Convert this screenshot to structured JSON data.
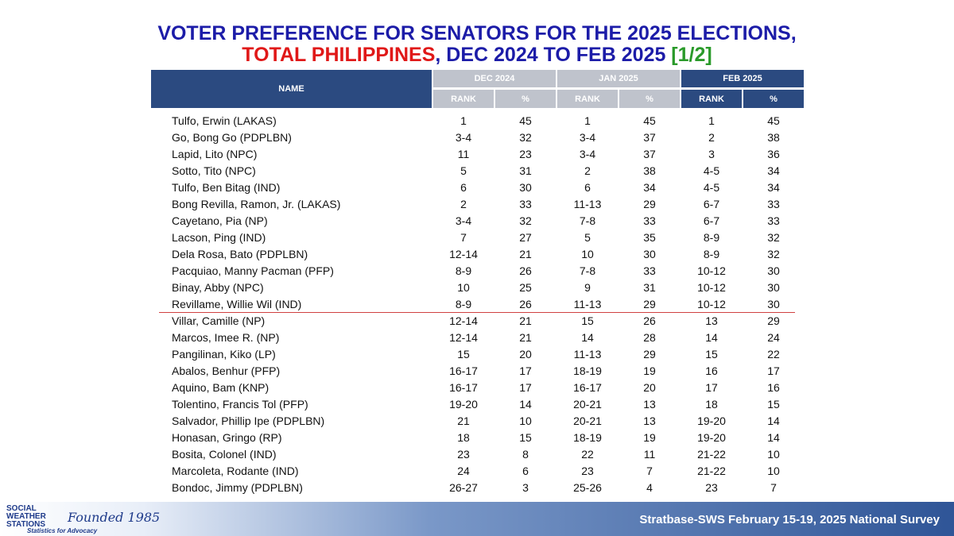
{
  "title": {
    "line1": "VOTER PREFERENCE FOR SENATORS FOR THE 2025 ELECTIONS,",
    "line2_red": "TOTAL PHILIPPINES",
    "line2_blue": ", DEC 2024 TO FEB 2025 ",
    "line2_green": "[1/2]"
  },
  "table": {
    "name_header": "NAME",
    "periods": [
      {
        "label": "DEC 2024",
        "columns": [
          "RANK",
          "%"
        ]
      },
      {
        "label": "JAN 2025",
        "columns": [
          "RANK",
          "%"
        ]
      },
      {
        "label": "FEB 2025",
        "columns": [
          "RANK",
          "%"
        ]
      }
    ],
    "rows": [
      [
        "Tulfo, Erwin (LAKAS)",
        "1",
        "45",
        "1",
        "45",
        "1",
        "45"
      ],
      [
        "Go, Bong Go (PDPLBN)",
        "3-4",
        "32",
        "3-4",
        "37",
        "2",
        "38"
      ],
      [
        "Lapid, Lito (NPC)",
        "11",
        "23",
        "3-4",
        "37",
        "3",
        "36"
      ],
      [
        "Sotto, Tito (NPC)",
        "5",
        "31",
        "2",
        "38",
        "4-5",
        "34"
      ],
      [
        "Tulfo, Ben Bitag (IND)",
        "6",
        "30",
        "6",
        "34",
        "4-5",
        "34"
      ],
      [
        "Bong Revilla, Ramon, Jr. (LAKAS)",
        "2",
        "33",
        "11-13",
        "29",
        "6-7",
        "33"
      ],
      [
        "Cayetano, Pia (NP)",
        "3-4",
        "32",
        "7-8",
        "33",
        "6-7",
        "33"
      ],
      [
        "Lacson, Ping (IND)",
        "7",
        "27",
        "5",
        "35",
        "8-9",
        "32"
      ],
      [
        "Dela Rosa, Bato (PDPLBN)",
        "12-14",
        "21",
        "10",
        "30",
        "8-9",
        "32"
      ],
      [
        "Pacquiao, Manny Pacman (PFP)",
        "8-9",
        "26",
        "7-8",
        "33",
        "10-12",
        "30"
      ],
      [
        "Binay, Abby (NPC)",
        "10",
        "25",
        "9",
        "31",
        "10-12",
        "30"
      ],
      [
        "Revillame, Willie Wil (IND)",
        "8-9",
        "26",
        "11-13",
        "29",
        "10-12",
        "30"
      ],
      [
        "Villar, Camille (NP)",
        "12-14",
        "21",
        "15",
        "26",
        "13",
        "29"
      ],
      [
        "Marcos, Imee R. (NP)",
        "12-14",
        "21",
        "14",
        "28",
        "14",
        "24"
      ],
      [
        "Pangilinan, Kiko (LP)",
        "15",
        "20",
        "11-13",
        "29",
        "15",
        "22"
      ],
      [
        "Abalos, Benhur (PFP)",
        "16-17",
        "17",
        "18-19",
        "19",
        "16",
        "17"
      ],
      [
        "Aquino, Bam (KNP)",
        "16-17",
        "17",
        "16-17",
        "20",
        "17",
        "16"
      ],
      [
        "Tolentino, Francis Tol (PFP)",
        "19-20",
        "14",
        "20-21",
        "13",
        "18",
        "15"
      ],
      [
        "Salvador, Phillip Ipe (PDPLBN)",
        "21",
        "10",
        "20-21",
        "13",
        "19-20",
        "14"
      ],
      [
        "Honasan, Gringo (RP)",
        "18",
        "15",
        "18-19",
        "19",
        "19-20",
        "14"
      ],
      [
        "Bosita, Colonel (IND)",
        "23",
        "8",
        "22",
        "11",
        "21-22",
        "10"
      ],
      [
        "Marcoleta, Rodante (IND)",
        "24",
        "6",
        "23",
        "7",
        "21-22",
        "10"
      ],
      [
        "Bondoc, Jimmy (PDPLBN)",
        "26-27",
        "3",
        "25-26",
        "4",
        "23",
        "7"
      ]
    ]
  },
  "footer": {
    "logo_lines": [
      "SOCIAL",
      "WEATHER",
      "STATIONS"
    ],
    "founded": "Founded 1985",
    "tagline": "Statistics for Advocacy",
    "source": "Stratbase-SWS February 15-19, 2025 National Survey"
  }
}
